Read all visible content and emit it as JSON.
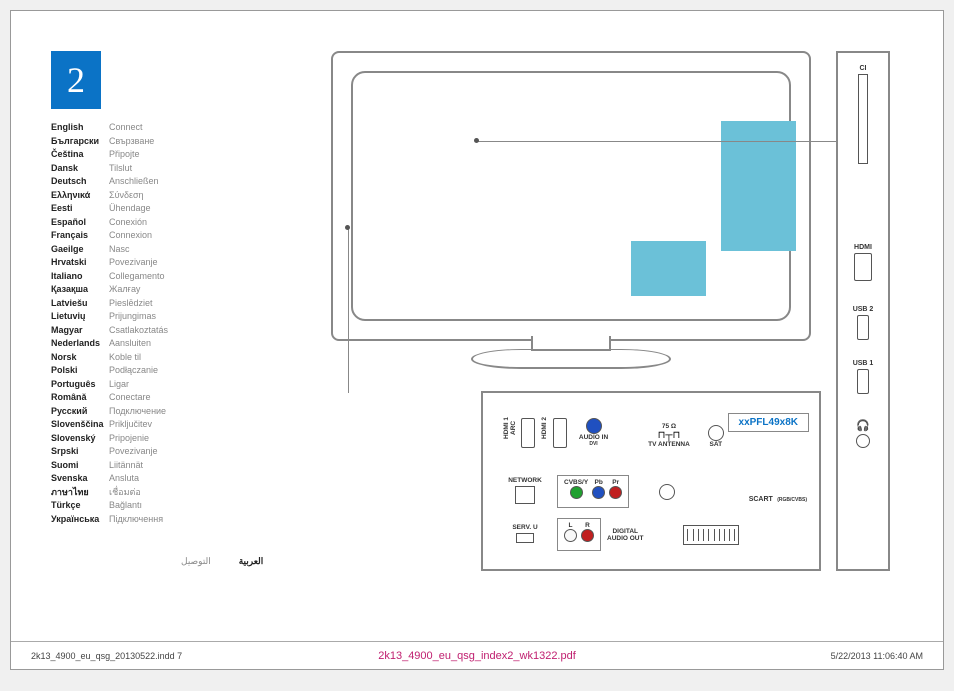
{
  "step_number": "2",
  "languages": [
    {
      "name": "English",
      "word": "Connect"
    },
    {
      "name": "Български",
      "word": "Свързване"
    },
    {
      "name": "Čeština",
      "word": "Připojte"
    },
    {
      "name": "Dansk",
      "word": "Tilslut"
    },
    {
      "name": "Deutsch",
      "word": "Anschließen"
    },
    {
      "name": "Ελληνικά",
      "word": "Σύνδεση"
    },
    {
      "name": "Eesti",
      "word": "Ühendage"
    },
    {
      "name": "Español",
      "word": "Conexión"
    },
    {
      "name": "Français",
      "word": "Connexion"
    },
    {
      "name": "Gaeilge",
      "word": "Nasc"
    },
    {
      "name": "Hrvatski",
      "word": "Povezivanje"
    },
    {
      "name": "Italiano",
      "word": "Collegamento"
    },
    {
      "name": "Қазақша",
      "word": "Жалғау"
    },
    {
      "name": "Latviešu",
      "word": "Pieslēdziet"
    },
    {
      "name": "Lietuvių",
      "word": "Prijungimas"
    },
    {
      "name": "Magyar",
      "word": "Csatlakoztatás"
    },
    {
      "name": "Nederlands",
      "word": "Aansluiten"
    },
    {
      "name": "Norsk",
      "word": "Koble til"
    },
    {
      "name": "Polski",
      "word": "Podłączanie"
    },
    {
      "name": "Português",
      "word": "Ligar"
    },
    {
      "name": "Română",
      "word": "Conectare"
    },
    {
      "name": "Русский",
      "word": "Подключение"
    },
    {
      "name": "Slovenščina",
      "word": "Priključitev"
    },
    {
      "name": "Slovenský",
      "word": "Pripojenie"
    },
    {
      "name": "Srpski",
      "word": "Povezivanje"
    },
    {
      "name": "Suomi",
      "word": "Liitännät"
    },
    {
      "name": "Svenska",
      "word": "Ansluta"
    },
    {
      "name": "ภาษาไทย",
      "word": "เชื่อมต่อ"
    },
    {
      "name": "Türkçe",
      "word": "Bağlantı"
    },
    {
      "name": "Українська",
      "word": "Підключення"
    }
  ],
  "rtl": {
    "name": "العربية",
    "word": "التوصيل"
  },
  "model": "xxPFL49x8K",
  "panel": {
    "hdmi1": "HDMI 1\nARC",
    "hdmi2": "HDMI 2",
    "audio_in": "AUDIO IN",
    "audio_in_sub": "DVI",
    "antenna_ohm": "75 Ω",
    "antenna": "TV ANTENNA",
    "sat": "SAT",
    "network": "NETWORK",
    "cvbs": "CVBS/Y",
    "pb": "Pb",
    "pr": "Pr",
    "scart": "SCART",
    "scart_sub": "(RGB/CVBS)",
    "servu": "SERV. U",
    "l": "L",
    "r": "R",
    "digital_audio": "DIGITAL\nAUDIO OUT"
  },
  "side": {
    "ci": "CI",
    "hdmi": "HDMI",
    "usb2": "USB 2",
    "usb1": "USB 1",
    "headphone": "🎧"
  },
  "colors": {
    "audio_in": "#2050c0",
    "cvbs": "#20a030",
    "pb": "#2050c0",
    "pr": "#c02020",
    "l": "#f8f8f8",
    "r": "#c02020",
    "highlight": "#6bc1d8",
    "badge": "#0b73c6"
  },
  "footer": {
    "left": "2k13_4900_eu_qsg_20130522.indd   7",
    "center": "2k13_4900_eu_qsg_index2_wk1322.pdf",
    "right": "5/22/2013   11:06:40 AM"
  }
}
